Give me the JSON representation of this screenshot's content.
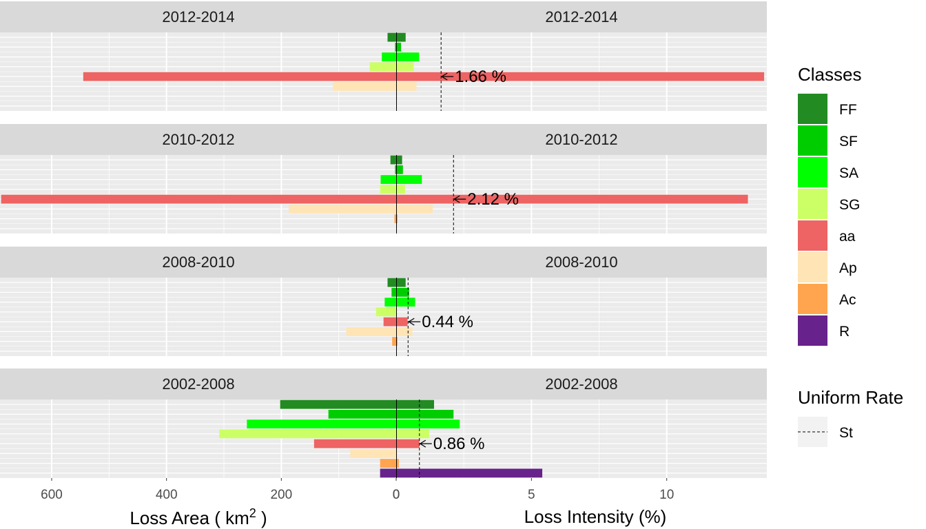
{
  "chart_data": {
    "type": "bar",
    "layout": "back-to-back horizontal bars, faceted by period (two panels per row)",
    "periods": [
      "2012-2014",
      "2010-2012",
      "2008-2010",
      "2002-2008"
    ],
    "categories": [
      "FF",
      "SF",
      "SA",
      "SG",
      "aa",
      "Ap",
      "Ac",
      "R"
    ],
    "left_axis": {
      "title_prefix": "Loss Area ( km",
      "title_sup": "2",
      "title_suffix": " )",
      "ticks": [
        600,
        400,
        200,
        0
      ],
      "xlim_reversed": [
        0,
        690
      ]
    },
    "right_axis": {
      "title": "Loss Intensity (%)",
      "ticks": [
        0,
        5,
        10
      ],
      "xlim": [
        0,
        13.7
      ]
    },
    "panels": [
      {
        "period": "2012-2014",
        "loss_area": {
          "FF": 15,
          "SF": 2,
          "SA": 25,
          "SG": 46,
          "aa": 545,
          "Ap": 110,
          "Ac": 0,
          "R": 0
        },
        "loss_intensity": {
          "FF": 0.35,
          "SF": 0.18,
          "SA": 0.85,
          "SG": 0.65,
          "aa": 13.6,
          "Ap": 0.75,
          "Ac": 0,
          "R": 0
        },
        "uniform_rate": 1.66,
        "uniform_rate_label": "1.66 %"
      },
      {
        "period": "2010-2012",
        "loss_area": {
          "FF": 10,
          "SF": 2,
          "SA": 27,
          "SG": 28,
          "aa": 688,
          "Ap": 187,
          "Ac": 3,
          "R": 0
        },
        "loss_intensity": {
          "FF": 0.22,
          "SF": 0.25,
          "SA": 0.95,
          "SG": 0.33,
          "aa": 13.0,
          "Ap": 1.35,
          "Ac": 0.05,
          "R": 0
        },
        "uniform_rate": 2.12,
        "uniform_rate_label": "2.12 %"
      },
      {
        "period": "2008-2010",
        "loss_area": {
          "FF": 15,
          "SF": 8,
          "SA": 20,
          "SG": 35,
          "aa": 22,
          "Ap": 87,
          "Ac": 7,
          "R": 0
        },
        "loss_intensity": {
          "FF": 0.35,
          "SF": 0.48,
          "SA": 0.7,
          "SG": 0.0,
          "aa": 0.42,
          "Ap": 0.6,
          "Ac": 0.05,
          "R": 0
        },
        "uniform_rate": 0.44,
        "uniform_rate_label": "0.44 %"
      },
      {
        "period": "2002-2008",
        "loss_area": {
          "FF": 202,
          "SF": 118,
          "SA": 260,
          "SG": 308,
          "aa": 143,
          "Ap": 80,
          "Ac": 28,
          "R": 28
        },
        "loss_intensity": {
          "FF": 1.4,
          "SF": 2.12,
          "SA": 2.35,
          "SG": 1.22,
          "aa": 0.86,
          "Ap": 0.0,
          "Ac": 0.1,
          "R": 5.4
        },
        "uniform_rate": 0.86,
        "uniform_rate_label": "0.86 %"
      }
    ],
    "legend": {
      "title": "Classes",
      "position": "right",
      "items": [
        {
          "label": "FF",
          "color": "#228B22"
        },
        {
          "label": "SF",
          "color": "#00CD00"
        },
        {
          "label": "SA",
          "color": "#00FF00"
        },
        {
          "label": "SG",
          "color": "#CCFF66"
        },
        {
          "label": "aa",
          "color": "#EE6363"
        },
        {
          "label": "Ap",
          "color": "#FFE4B5"
        },
        {
          "label": "Ac",
          "color": "#FFA54F"
        },
        {
          "label": "R",
          "color": "#68228B"
        }
      ]
    },
    "uniform_legend": {
      "title": "Uniform Rate",
      "items": [
        {
          "label": "St",
          "linetype": "dashed"
        }
      ]
    },
    "colors": {
      "strip_background": "#D9D9D9",
      "panel_background": "#EBEBEB",
      "grid": "#FFFFFF",
      "zero_line": "#000000"
    },
    "grid": true
  }
}
